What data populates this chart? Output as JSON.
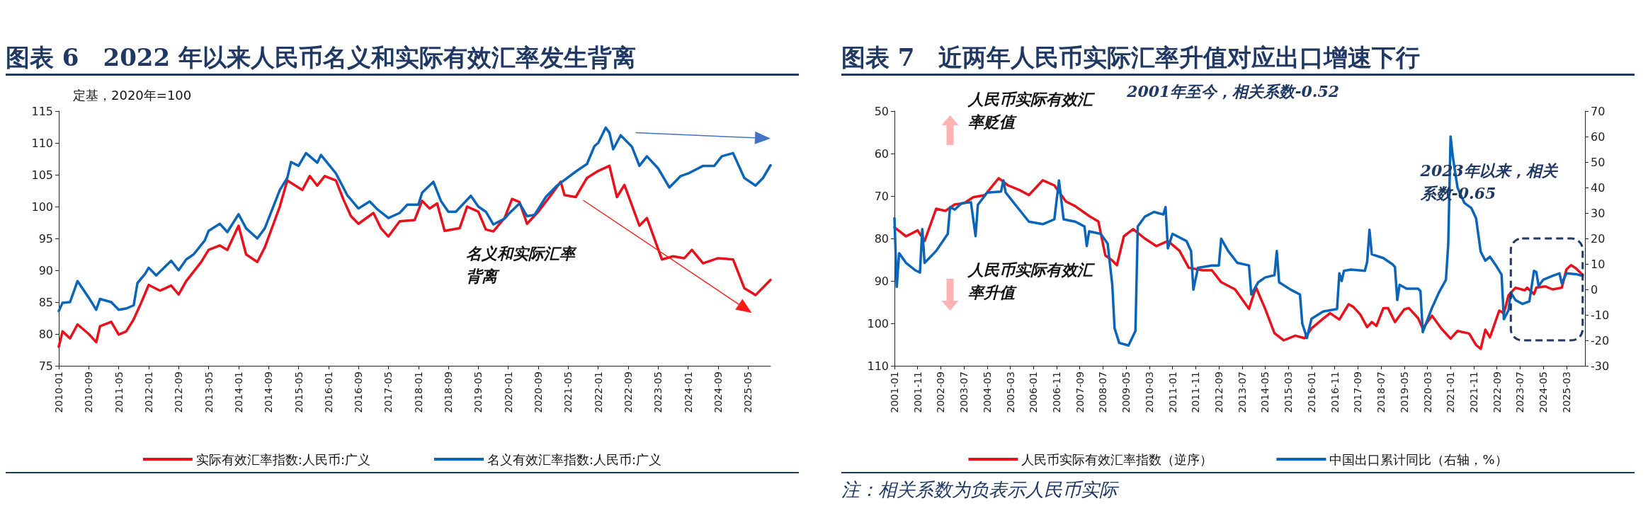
{
  "chart_data": [
    {
      "type": "line",
      "title": "图表 6　2022 年以来人民币名义和实际有效汇率发生背离",
      "ylabel": "定基，2020年=100",
      "xlim": [
        "2010-01",
        "2025-11"
      ],
      "xticks": [
        "2010-01",
        "2010-09",
        "2011-05",
        "2012-01",
        "2012-09",
        "2013-05",
        "2014-01",
        "2014-09",
        "2015-05",
        "2016-01",
        "2016-09",
        "2017-05",
        "2018-01",
        "2018-09",
        "2019-05",
        "2020-01",
        "2020-09",
        "2021-05",
        "2022-01",
        "2022-09",
        "2023-05",
        "2024-01",
        "2024-09",
        "2025-05"
      ],
      "ylim": [
        75,
        115
      ],
      "yticks": [
        75,
        80,
        85,
        90,
        95,
        100,
        105,
        110,
        115
      ],
      "grid": false,
      "legend": "bottom",
      "marker": "none",
      "line_style": "solid",
      "annotations": [
        "名义和实际汇率背离"
      ],
      "series": [
        {
          "name": "实际有效汇率指数:人民币:广义",
          "color": "#e8101a",
          "x": [
            "2010-01",
            "2010-02",
            "2010-04",
            "2010-06",
            "2010-09",
            "2010-11",
            "2010-12",
            "2011-03",
            "2011-05",
            "2011-07",
            "2011-09",
            "2011-11",
            "2012-01",
            "2012-04",
            "2012-07",
            "2012-09",
            "2012-11",
            "2013-03",
            "2013-05",
            "2013-08",
            "2013-10",
            "2014-01",
            "2014-03",
            "2014-06",
            "2014-08",
            "2014-12",
            "2015-02",
            "2015-06",
            "2015-08",
            "2015-10",
            "2015-12",
            "2016-03",
            "2016-05",
            "2016-07",
            "2016-09",
            "2017-01",
            "2017-03",
            "2017-05",
            "2017-08",
            "2017-12",
            "2018-02",
            "2018-04",
            "2018-06",
            "2018-08",
            "2018-12",
            "2019-02",
            "2019-05",
            "2019-07",
            "2019-09",
            "2019-12",
            "2020-02",
            "2020-04",
            "2020-06",
            "2020-09",
            "2020-12",
            "2021-03",
            "2021-04",
            "2021-07",
            "2021-10",
            "2022-01",
            "2022-04",
            "2022-06",
            "2022-08",
            "2022-12",
            "2023-02",
            "2023-06",
            "2023-09",
            "2023-12",
            "2024-02",
            "2024-05",
            "2024-09",
            "2025-01",
            "2025-04",
            "2025-07",
            "2025-11"
          ],
          "values": [
            78,
            80.4,
            79.3,
            81.5,
            80,
            78.7,
            81.2,
            81.9,
            79.9,
            80.4,
            82.3,
            84.9,
            87.7,
            86.8,
            87.6,
            86.2,
            88.3,
            91.3,
            93.2,
            93.9,
            93.2,
            97,
            92.5,
            91.3,
            93.6,
            100,
            104.1,
            102.6,
            104.8,
            103.3,
            104.8,
            104.1,
            101.1,
            98.5,
            97.3,
            99,
            96.6,
            95.3,
            97.7,
            97.9,
            100.9,
            99.7,
            100.5,
            96.2,
            96.6,
            100,
            99.2,
            96.4,
            96.1,
            98.2,
            101.2,
            100.7,
            97.3,
            99.2,
            101.5,
            103.9,
            101.8,
            101.5,
            104.5,
            105.6,
            106.4,
            101.5,
            103.4,
            97,
            98.2,
            91.7,
            92.2,
            91.9,
            93.2,
            91.1,
            91.9,
            91.7,
            87.2,
            86.1,
            88.5
          ]
        },
        {
          "name": "名义有效汇率指数:人民币:广义",
          "color": "#0a64b8",
          "x": [
            "2010-01",
            "2010-02",
            "2010-04",
            "2010-06",
            "2010-09",
            "2010-11",
            "2010-12",
            "2011-03",
            "2011-05",
            "2011-07",
            "2011-09",
            "2011-10",
            "2011-12",
            "2012-01",
            "2012-03",
            "2012-07",
            "2012-09",
            "2012-11",
            "2013-01",
            "2013-04",
            "2013-05",
            "2013-08",
            "2013-10",
            "2014-01",
            "2014-03",
            "2014-06",
            "2014-08",
            "2014-12",
            "2015-02",
            "2015-03",
            "2015-05",
            "2015-07",
            "2015-10",
            "2015-11",
            "2016-03",
            "2016-06",
            "2016-09",
            "2016-12",
            "2017-02",
            "2017-05",
            "2017-08",
            "2017-10",
            "2018-01",
            "2018-02",
            "2018-05",
            "2018-07",
            "2018-09",
            "2018-11",
            "2019-03",
            "2019-05",
            "2019-07",
            "2019-09",
            "2019-12",
            "2020-01",
            "2020-04",
            "2020-06",
            "2020-08",
            "2020-11",
            "2021-02",
            "2021-07",
            "2021-10",
            "2021-12",
            "2022-01",
            "2022-03",
            "2022-04",
            "2022-05",
            "2022-07",
            "2022-10",
            "2022-12",
            "2023-02",
            "2023-05",
            "2023-08",
            "2023-11",
            "2024-01",
            "2024-05",
            "2024-08",
            "2024-10",
            "2025-01",
            "2025-04",
            "2025-07",
            "2025-09",
            "2025-11"
          ],
          "values": [
            83.6,
            84.9,
            85,
            88.3,
            85.7,
            83.8,
            85.5,
            85,
            83.8,
            84,
            84.5,
            88,
            89.4,
            90.4,
            89.2,
            91.5,
            90,
            91.7,
            92.5,
            94.7,
            96.2,
            97.3,
            96,
            98.8,
            96.6,
            95,
            96.6,
            102.6,
            104.5,
            107,
            106.4,
            108.4,
            106.9,
            108.1,
            105.2,
            101.8,
            99.7,
            100.8,
            99.6,
            98.2,
            99,
            100.3,
            100.3,
            102.2,
            103.9,
            100.9,
            99.2,
            99.2,
            101.7,
            100,
            99.2,
            97.2,
            98.1,
            98.8,
            100.5,
            98.5,
            98.7,
            101.5,
            103.3,
            105.5,
            106.7,
            109.5,
            110,
            112.4,
            111.6,
            109,
            111.2,
            109.4,
            106.4,
            107.9,
            106,
            103,
            104.8,
            105.2,
            106.4,
            106.4,
            107.9,
            108.4,
            104.5,
            103.3,
            104.5,
            106.5
          ]
        }
      ]
    },
    {
      "type": "line",
      "title": "图表 7　近两年人民币实际汇率升值对应出口增速下行",
      "xlim": [
        "2001-01",
        "2025-11"
      ],
      "xticks": [
        "2001-01",
        "2001-11",
        "2002-09",
        "2003-07",
        "2004-05",
        "2005-03",
        "2006-01",
        "2006-11",
        "2007-09",
        "2008-07",
        "2009-05",
        "2010-03",
        "2011-01",
        "2011-11",
        "2012-09",
        "2013-07",
        "2014-05",
        "2015-03",
        "2016-01",
        "2016-11",
        "2017-09",
        "2018-07",
        "2019-05",
        "2020-03",
        "2021-01",
        "2021-11",
        "2022-09",
        "2023-07",
        "2024-05",
        "2025-03"
      ],
      "ylim": [
        110,
        50
      ],
      "yticks": [
        50,
        60,
        70,
        80,
        90,
        100,
        110
      ],
      "y2lim": [
        -30,
        70
      ],
      "y2ticks": [
        -30,
        -20,
        -10,
        0,
        10,
        20,
        30,
        40,
        50,
        60,
        70
      ],
      "grid": false,
      "legend": "bottom",
      "marker": "none",
      "line_style": "solid",
      "annotations": [
        "2001年至今，相关系数-0.52",
        "人民币实际有效汇率贬值",
        "人民币实际有效汇率升值",
        "2023年以来，相关系数-0.65",
        "注：相关系数为负表示人民币实际"
      ],
      "series": [
        {
          "name": "人民币实际有效汇率指数（逆序）",
          "color": "#e8101a",
          "x": [
            "2001-01",
            "2001-06",
            "2001-11",
            "2002-02",
            "2002-07",
            "2002-11",
            "2003-03",
            "2003-07",
            "2003-11",
            "2004-04",
            "2004-10",
            "2005-02",
            "2005-07",
            "2005-11",
            "2006-05",
            "2006-10",
            "2007-03",
            "2007-07",
            "2008-01",
            "2008-05",
            "2008-08",
            "2008-11",
            "2009-01",
            "2009-04",
            "2009-08",
            "2010-01",
            "2010-06",
            "2010-11",
            "2011-04",
            "2011-08",
            "2012-02",
            "2012-06",
            "2012-10",
            "2013-04",
            "2013-10",
            "2014-01",
            "2014-05",
            "2014-09",
            "2015-01",
            "2015-06",
            "2015-10",
            "2016-01",
            "2016-06",
            "2016-09",
            "2017-01",
            "2017-05",
            "2017-07",
            "2017-10",
            "2018-01",
            "2018-03",
            "2018-05",
            "2018-08",
            "2018-10",
            "2019-01",
            "2019-05",
            "2019-07",
            "2019-11",
            "2020-01",
            "2020-05",
            "2020-09",
            "2021-01",
            "2021-04",
            "2021-09",
            "2021-12",
            "2022-02",
            "2022-04",
            "2022-06",
            "2022-10",
            "2022-12",
            "2023-02",
            "2023-05",
            "2023-09",
            "2023-10",
            "2024-01",
            "2024-02",
            "2024-06",
            "2024-09",
            "2025-01",
            "2025-03",
            "2025-05",
            "2025-07",
            "2025-10"
          ],
          "values": [
            77.4,
            79.5,
            78.1,
            80.6,
            73,
            73.5,
            72,
            71.7,
            70.3,
            69.8,
            65.8,
            67.5,
            68.6,
            69.8,
            66.3,
            67.5,
            71.3,
            72.4,
            74.7,
            76,
            84,
            85.2,
            86.3,
            79.5,
            77.8,
            80,
            81.8,
            80.6,
            82.9,
            86.9,
            87.5,
            87.5,
            90.3,
            92,
            96.6,
            91.5,
            96.6,
            102.3,
            104,
            102.9,
            103.5,
            101.2,
            98.9,
            97.6,
            99.1,
            95.5,
            96.1,
            97.9,
            100.9,
            99.7,
            100.6,
            96.4,
            96.4,
            99.7,
            96.7,
            96.4,
            98.8,
            101.2,
            98.2,
            101.2,
            103.6,
            101.8,
            102.4,
            105.1,
            106,
            101.5,
            103.3,
            97,
            97.6,
            93.4,
            91.6,
            92.2,
            91.6,
            93.1,
            91.6,
            91.3,
            92,
            91.6,
            87.3,
            86.3,
            87,
            88.6
          ]
        },
        {
          "name": "中国出口累计同比（右轴，%）",
          "color": "#0a64b8",
          "axis": "y2",
          "x": [
            "2001-01",
            "2001-02",
            "2001-03",
            "2001-06",
            "2001-10",
            "2001-12",
            "2002-01",
            "2002-02",
            "2002-07",
            "2002-12",
            "2003-01",
            "2003-03",
            "2003-06",
            "2003-10",
            "2003-12",
            "2004-01",
            "2004-05",
            "2004-11",
            "2004-12",
            "2005-01",
            "2005-06",
            "2005-11",
            "2006-05",
            "2006-10",
            "2006-12",
            "2007-02",
            "2007-07",
            "2007-11",
            "2007-12",
            "2008-01",
            "2008-06",
            "2008-09",
            "2008-11",
            "2008-12",
            "2009-02",
            "2009-06",
            "2009-09",
            "2009-10",
            "2010-01",
            "2010-05",
            "2010-09",
            "2010-10",
            "2010-11",
            "2011-01",
            "2011-07",
            "2011-09",
            "2011-10",
            "2011-12",
            "2012-06",
            "2012-09",
            "2012-10",
            "2013-01",
            "2013-05",
            "2013-10",
            "2013-11",
            "2014-02",
            "2014-05",
            "2014-09",
            "2014-10",
            "2014-11",
            "2015-04",
            "2015-08",
            "2015-09",
            "2015-11",
            "2016-01",
            "2016-06",
            "2016-12",
            "2017-01",
            "2017-02",
            "2017-03",
            "2017-06",
            "2017-12",
            "2018-01",
            "2018-02",
            "2018-03",
            "2018-08",
            "2018-12",
            "2019-01",
            "2019-02",
            "2019-03",
            "2019-06",
            "2019-11",
            "2019-12",
            "2020-01",
            "2020-05",
            "2020-08",
            "2020-11",
            "2020-12",
            "2021-01",
            "2021-02",
            "2021-04",
            "2021-07",
            "2021-10",
            "2021-12",
            "2022-02",
            "2022-04",
            "2022-06",
            "2022-09",
            "2022-11",
            "2022-12",
            "2023-02",
            "2023-03",
            "2023-05",
            "2023-08",
            "2023-11",
            "2024-01",
            "2024-02",
            "2024-03",
            "2024-05",
            "2024-09",
            "2024-12",
            "2025-01",
            "2025-03",
            "2025-07",
            "2025-10"
          ],
          "values": [
            28,
            1,
            14.2,
            10.4,
            7.5,
            6.6,
            23.7,
            10.4,
            15.1,
            21.8,
            32.3,
            31.3,
            33.8,
            34.2,
            20.9,
            33.2,
            38,
            38.4,
            42.8,
            38,
            32.3,
            26.6,
            25.6,
            27.5,
            42.8,
            27.5,
            26.6,
            24.7,
            17,
            22.8,
            21.8,
            18,
            1.8,
            -15.3,
            -21,
            -22,
            -16.3,
            24.7,
            28.5,
            30.4,
            29.4,
            32.3,
            16.1,
            21.8,
            19,
            15.1,
            -0.1,
            8.5,
            9.4,
            9.4,
            19.9,
            15.1,
            10.4,
            9.4,
            -2,
            2.8,
            4.7,
            5.6,
            15.1,
            2.8,
            -0.1,
            -2,
            -13.4,
            -19.1,
            -11.5,
            -8.7,
            -7.7,
            6.3,
            3.3,
            7.3,
            7.8,
            7.3,
            10.8,
            23.4,
            13.8,
            12.3,
            9.8,
            8.8,
            -4.2,
            1.8,
            0.3,
            0.3,
            -0.7,
            -16.8,
            -7.2,
            -1.2,
            3.8,
            17.8,
            60,
            51.9,
            39.9,
            33.9,
            31.9,
            27.9,
            14.8,
            11.3,
            12.8,
            8.8,
            5.8,
            -11.7,
            -8.2,
            -1.2,
            -4.2,
            -5.7,
            -4.7,
            7.3,
            6.8,
            1.3,
            3.8,
            5.3,
            6.3,
            2.3,
            6.3,
            6,
            5.3
          ]
        }
      ]
    }
  ]
}
